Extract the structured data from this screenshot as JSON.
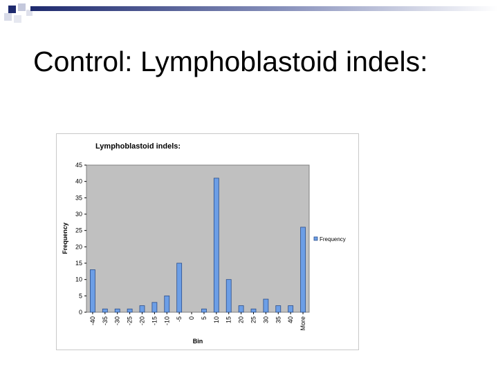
{
  "slide": {
    "title": "Control: Lymphoblastoid indels:"
  },
  "colors": {
    "bar_fill": "#6c9ee6",
    "bar_stroke": "#2a4d8a",
    "plot_area": "#c0c0c0",
    "deco_square": "#1e2a6e",
    "deco_gradient_start": "#1e2a6e",
    "deco_gradient_end": "#ffffff"
  },
  "chart_data": {
    "type": "bar",
    "title": "Lymphoblastoid indels:",
    "xlabel": "Bin",
    "ylabel": "Frequency",
    "ylim": [
      0,
      45
    ],
    "y_ticks": [
      0,
      5,
      10,
      15,
      20,
      25,
      30,
      35,
      40,
      45
    ],
    "grid": false,
    "legend_position": "right",
    "categories": [
      "-40",
      "-35",
      "-30",
      "-25",
      "-20",
      "-15",
      "-10",
      "-5",
      "0",
      "5",
      "10",
      "15",
      "20",
      "25",
      "30",
      "35",
      "40",
      "More"
    ],
    "series": [
      {
        "name": "Frequency",
        "values": [
          13,
          1,
          1,
          1,
          2,
          3,
          5,
          15,
          0,
          1,
          41,
          10,
          2,
          1,
          4,
          2,
          2,
          26
        ]
      }
    ]
  }
}
